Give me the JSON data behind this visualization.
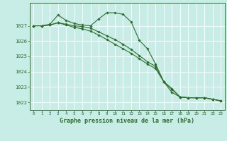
{
  "title": "Graphe pression niveau de la mer (hPa)",
  "bg_color": "#c8ece6",
  "grid_color": "#ffffff",
  "line_color": "#2d6e2d",
  "ylim": [
    1021.5,
    1028.5
  ],
  "xlim": [
    -0.5,
    23.5
  ],
  "yticks": [
    1022,
    1023,
    1024,
    1025,
    1026,
    1027
  ],
  "xticks": [
    0,
    1,
    2,
    3,
    4,
    5,
    6,
    7,
    8,
    9,
    10,
    11,
    12,
    13,
    14,
    15,
    16,
    17,
    18,
    19,
    20,
    21,
    22,
    23
  ],
  "line1": [
    1027.0,
    1027.0,
    1027.1,
    1027.7,
    1027.35,
    1027.15,
    1027.05,
    1027.0,
    1027.45,
    1027.85,
    1027.85,
    1027.75,
    1027.25,
    1026.05,
    1025.5,
    1024.5,
    1023.35,
    1022.85,
    1022.35,
    1022.3,
    1022.3,
    1022.3,
    1022.2,
    1022.1
  ],
  "line2": [
    1027.0,
    1027.0,
    1027.05,
    1027.2,
    1027.1,
    1027.0,
    1026.95,
    1026.85,
    1026.6,
    1026.35,
    1026.1,
    1025.8,
    1025.45,
    1025.05,
    1024.65,
    1024.35,
    1023.35,
    1022.9,
    1022.35,
    1022.3,
    1022.3,
    1022.3,
    1022.2,
    1022.1
  ],
  "line3": [
    1027.0,
    1027.0,
    1027.05,
    1027.2,
    1027.05,
    1026.9,
    1026.8,
    1026.65,
    1026.4,
    1026.1,
    1025.8,
    1025.5,
    1025.2,
    1024.85,
    1024.5,
    1024.2,
    1023.35,
    1022.65,
    1022.35,
    1022.3,
    1022.3,
    1022.3,
    1022.2,
    1022.1
  ]
}
